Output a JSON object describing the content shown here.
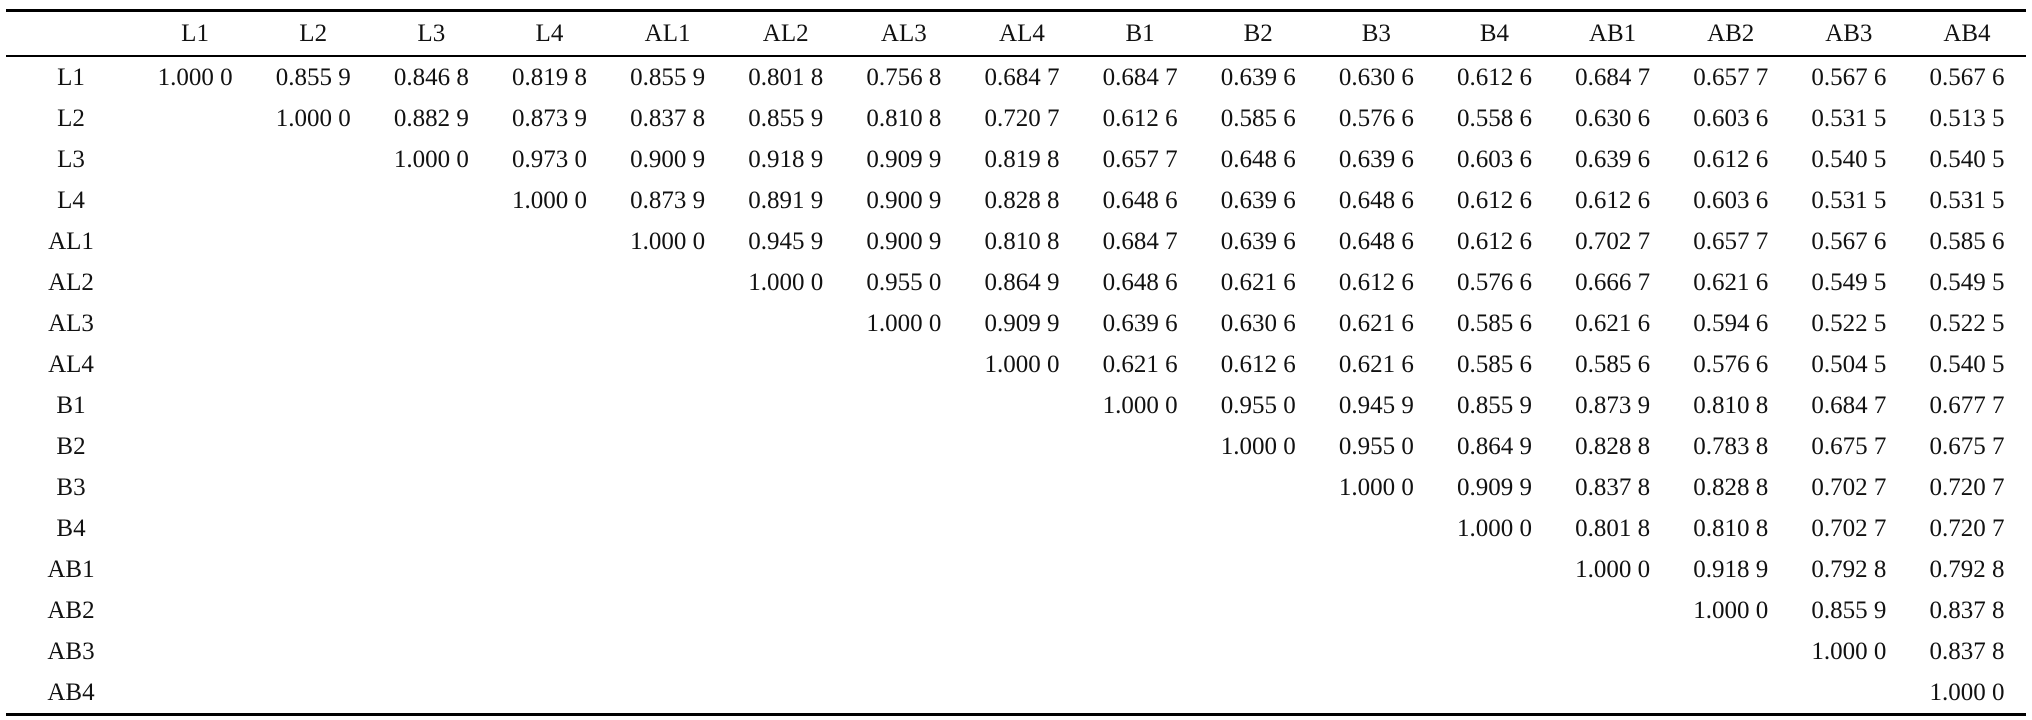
{
  "table": {
    "header": [
      "L1",
      "L2",
      "L3",
      "L4",
      "AL1",
      "AL2",
      "AL3",
      "AL4",
      "B1",
      "B2",
      "B3",
      "B4",
      "AB1",
      "AB2",
      "AB3",
      "AB4"
    ],
    "rows": [
      {
        "label": "L1",
        "cells": [
          "1.000 0",
          "0.855 9",
          "0.846 8",
          "0.819 8",
          "0.855 9",
          "0.801 8",
          "0.756 8",
          "0.684 7",
          "0.684 7",
          "0.639 6",
          "0.630 6",
          "0.612 6",
          "0.684 7",
          "0.657 7",
          "0.567 6",
          "0.567 6"
        ]
      },
      {
        "label": "L2",
        "cells": [
          "1.000 0",
          "0.882 9",
          "0.873 9",
          "0.837 8",
          "0.855 9",
          "0.810 8",
          "0.720 7",
          "0.612 6",
          "0.585 6",
          "0.576 6",
          "0.558 6",
          "0.630 6",
          "0.603 6",
          "0.531 5",
          "0.513 5"
        ]
      },
      {
        "label": "L3",
        "cells": [
          "1.000 0",
          "0.973 0",
          "0.900 9",
          "0.918 9",
          "0.909 9",
          "0.819 8",
          "0.657 7",
          "0.648 6",
          "0.639 6",
          "0.603 6",
          "0.639 6",
          "0.612 6",
          "0.540 5",
          "0.540 5"
        ]
      },
      {
        "label": "L4",
        "cells": [
          "1.000 0",
          "0.873 9",
          "0.891 9",
          "0.900 9",
          "0.828 8",
          "0.648 6",
          "0.639 6",
          "0.648 6",
          "0.612 6",
          "0.612 6",
          "0.603 6",
          "0.531 5",
          "0.531 5"
        ]
      },
      {
        "label": "AL1",
        "cells": [
          "1.000 0",
          "0.945 9",
          "0.900 9",
          "0.810 8",
          "0.684 7",
          "0.639 6",
          "0.648 6",
          "0.612 6",
          "0.702 7",
          "0.657 7",
          "0.567 6",
          "0.585 6"
        ]
      },
      {
        "label": "AL2",
        "cells": [
          "1.000 0",
          "0.955 0",
          "0.864 9",
          "0.648 6",
          "0.621 6",
          "0.612 6",
          "0.576 6",
          "0.666 7",
          "0.621 6",
          "0.549 5",
          "0.549 5"
        ]
      },
      {
        "label": "AL3",
        "cells": [
          "1.000 0",
          "0.909 9",
          "0.639 6",
          "0.630 6",
          "0.621 6",
          "0.585 6",
          "0.621 6",
          "0.594 6",
          "0.522 5",
          "0.522 5"
        ]
      },
      {
        "label": "AL4",
        "cells": [
          "1.000 0",
          "0.621 6",
          "0.612 6",
          "0.621 6",
          "0.585 6",
          "0.585 6",
          "0.576 6",
          "0.504 5",
          "0.540 5"
        ]
      },
      {
        "label": "B1",
        "cells": [
          "1.000 0",
          "0.955 0",
          "0.945 9",
          "0.855 9",
          "0.873 9",
          "0.810 8",
          "0.684 7",
          "0.677 7"
        ]
      },
      {
        "label": "B2",
        "cells": [
          "1.000 0",
          "0.955 0",
          "0.864 9",
          "0.828 8",
          "0.783 8",
          "0.675 7",
          "0.675 7"
        ]
      },
      {
        "label": "B3",
        "cells": [
          "1.000 0",
          "0.909 9",
          "0.837 8",
          "0.828 8",
          "0.702 7",
          "0.720 7"
        ]
      },
      {
        "label": "B4",
        "cells": [
          "1.000 0",
          "0.801 8",
          "0.810 8",
          "0.702 7",
          "0.720 7"
        ]
      },
      {
        "label": "AB1",
        "cells": [
          "1.000 0",
          "0.918 9",
          "0.792 8",
          "0.792 8"
        ]
      },
      {
        "label": "AB2",
        "cells": [
          "1.000 0",
          "0.855 9",
          "0.837 8"
        ]
      },
      {
        "label": "AB3",
        "cells": [
          "1.000 0",
          "0.837 8"
        ]
      },
      {
        "label": "AB4",
        "cells": [
          "1.000 0"
        ]
      }
    ]
  }
}
